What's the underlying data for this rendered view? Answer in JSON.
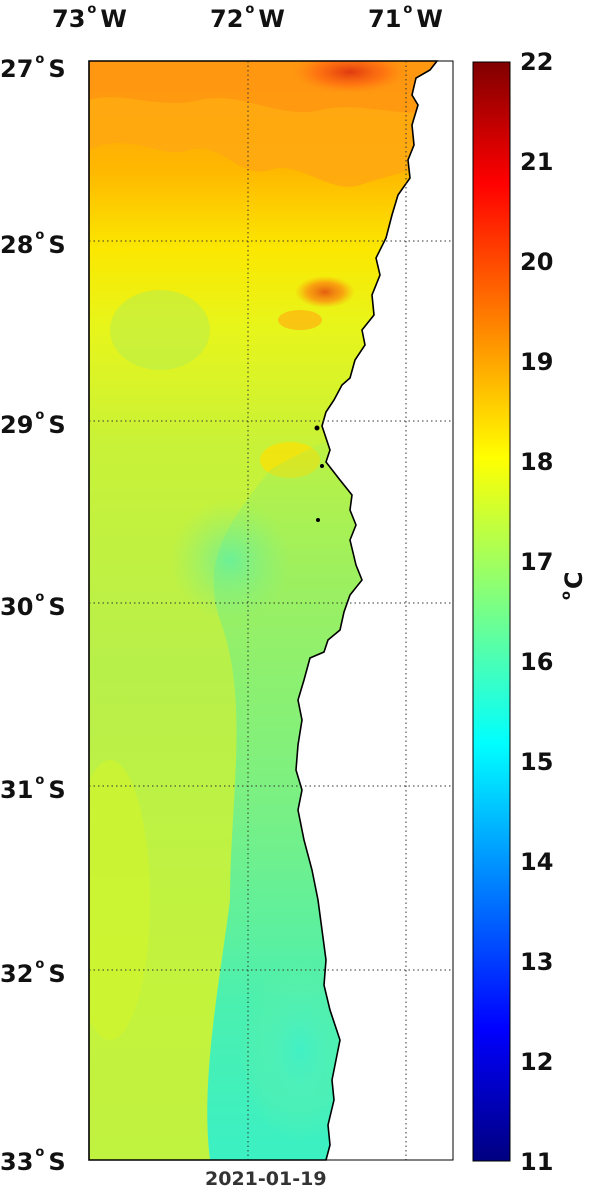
{
  "map": {
    "date": "2021-01-19",
    "lon_labels": [
      {
        "deg": "73",
        "hemi": "W"
      },
      {
        "deg": "72",
        "hemi": "W"
      },
      {
        "deg": "71",
        "hemi": "W"
      }
    ],
    "lat_labels": [
      {
        "deg": "27",
        "hemi": "S"
      },
      {
        "deg": "28",
        "hemi": "S"
      },
      {
        "deg": "29",
        "hemi": "S"
      },
      {
        "deg": "30",
        "hemi": "S"
      },
      {
        "deg": "31",
        "hemi": "S"
      },
      {
        "deg": "32",
        "hemi": "S"
      },
      {
        "deg": "33",
        "hemi": "S"
      }
    ],
    "lon_range": [
      -73,
      -70.7
    ],
    "lat_range": [
      -33,
      -27
    ],
    "grid": true
  },
  "colorbar": {
    "unit_symbol": "C",
    "ticks": [
      "22",
      "21",
      "20",
      "19",
      "18",
      "17",
      "16",
      "15",
      "14",
      "13",
      "12",
      "11"
    ],
    "range": [
      11,
      22
    ],
    "colormap": "jet"
  }
}
